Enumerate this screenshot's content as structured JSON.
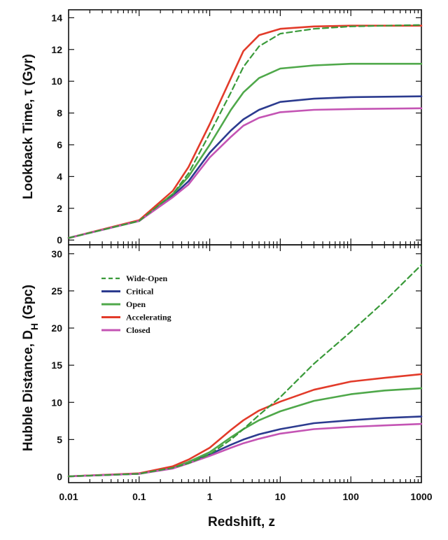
{
  "chart_data": [
    {
      "type": "line",
      "id": "top",
      "xscale": "log",
      "xlim": [
        0.01,
        1000
      ],
      "ylim": [
        -0.3,
        14.5
      ],
      "ylabel": "Lookback Time, τ (Gyr)",
      "yticks": [
        0,
        2,
        4,
        6,
        8,
        10,
        12,
        14
      ],
      "grid": false,
      "series": [
        {
          "name": "Wide-Open",
          "color": "#3a9a3a",
          "dashed": true,
          "points": [
            [
              0.01,
              0.13
            ],
            [
              0.1,
              1.2
            ],
            [
              0.3,
              2.9
            ],
            [
              0.5,
              4.2
            ],
            [
              1,
              6.7
            ],
            [
              2,
              9.3
            ],
            [
              3,
              10.9
            ],
            [
              5,
              12.2
            ],
            [
              10,
              13.0
            ],
            [
              30,
              13.3
            ],
            [
              100,
              13.45
            ],
            [
              1000,
              13.55
            ]
          ]
        },
        {
          "name": "Critical",
          "color": "#2c3b8f",
          "dashed": false,
          "points": [
            [
              0.01,
              0.13
            ],
            [
              0.1,
              1.2
            ],
            [
              0.3,
              2.8
            ],
            [
              0.5,
              3.7
            ],
            [
              1,
              5.5
            ],
            [
              2,
              6.9
            ],
            [
              3,
              7.6
            ],
            [
              5,
              8.2
            ],
            [
              10,
              8.7
            ],
            [
              30,
              8.9
            ],
            [
              100,
              9.0
            ],
            [
              1000,
              9.05
            ]
          ]
        },
        {
          "name": "Open",
          "color": "#4fa84a",
          "dashed": false,
          "points": [
            [
              0.01,
              0.13
            ],
            [
              0.1,
              1.2
            ],
            [
              0.3,
              2.9
            ],
            [
              0.5,
              4.0
            ],
            [
              1,
              6.0
            ],
            [
              2,
              8.2
            ],
            [
              3,
              9.3
            ],
            [
              5,
              10.2
            ],
            [
              10,
              10.8
            ],
            [
              30,
              11.0
            ],
            [
              100,
              11.1
            ],
            [
              1000,
              11.1
            ]
          ]
        },
        {
          "name": "Accelerating",
          "color": "#e23b2a",
          "dashed": false,
          "points": [
            [
              0.01,
              0.13
            ],
            [
              0.1,
              1.25
            ],
            [
              0.3,
              3.1
            ],
            [
              0.5,
              4.6
            ],
            [
              1,
              7.3
            ],
            [
              2,
              10.2
            ],
            [
              3,
              11.9
            ],
            [
              5,
              12.9
            ],
            [
              10,
              13.3
            ],
            [
              30,
              13.45
            ],
            [
              100,
              13.5
            ],
            [
              1000,
              13.5
            ]
          ]
        },
        {
          "name": "Closed",
          "color": "#c454b4",
          "dashed": false,
          "points": [
            [
              0.01,
              0.13
            ],
            [
              0.1,
              1.2
            ],
            [
              0.3,
              2.7
            ],
            [
              0.5,
              3.5
            ],
            [
              1,
              5.2
            ],
            [
              2,
              6.5
            ],
            [
              3,
              7.2
            ],
            [
              5,
              7.7
            ],
            [
              10,
              8.05
            ],
            [
              30,
              8.2
            ],
            [
              100,
              8.25
            ],
            [
              1000,
              8.3
            ]
          ]
        }
      ]
    },
    {
      "type": "line",
      "id": "bottom",
      "xscale": "log",
      "xlim": [
        0.01,
        1000
      ],
      "ylim": [
        -0.8,
        31.2
      ],
      "xlabel": "Redshift, z",
      "ylabel": "Hubble Distance, D_H (Gpc)",
      "yticks": [
        0,
        5,
        10,
        15,
        20,
        25,
        30
      ],
      "xticks": [
        0.01,
        0.1,
        1,
        10,
        100,
        1000
      ],
      "xtick_labels": [
        "0.01",
        "0.1",
        "1",
        "10",
        "100",
        "1000"
      ],
      "grid": false,
      "legend_position": "top-left",
      "series": [
        {
          "name": "Wide-Open",
          "color": "#3a9a3a",
          "dashed": true,
          "points": [
            [
              0.01,
              0.05
            ],
            [
              0.1,
              0.4
            ],
            [
              0.3,
              1.2
            ],
            [
              0.5,
              1.8
            ],
            [
              1,
              3.0
            ],
            [
              2,
              5.0
            ],
            [
              3,
              6.4
            ],
            [
              5,
              8.3
            ],
            [
              10,
              10.7
            ],
            [
              30,
              15.2
            ],
            [
              100,
              19.5
            ],
            [
              300,
              23.6
            ],
            [
              1000,
              28.5
            ]
          ]
        },
        {
          "name": "Critical",
          "color": "#2c3b8f",
          "dashed": false,
          "points": [
            [
              0.01,
              0.05
            ],
            [
              0.1,
              0.4
            ],
            [
              0.3,
              1.2
            ],
            [
              0.5,
              1.9
            ],
            [
              1,
              3.0
            ],
            [
              2,
              4.3
            ],
            [
              3,
              5.0
            ],
            [
              5,
              5.7
            ],
            [
              10,
              6.4
            ],
            [
              30,
              7.2
            ],
            [
              100,
              7.6
            ],
            [
              300,
              7.9
            ],
            [
              1000,
              8.1
            ]
          ]
        },
        {
          "name": "Open",
          "color": "#4fa84a",
          "dashed": false,
          "points": [
            [
              0.01,
              0.05
            ],
            [
              0.1,
              0.4
            ],
            [
              0.3,
              1.2
            ],
            [
              0.5,
              2.0
            ],
            [
              1,
              3.3
            ],
            [
              2,
              5.3
            ],
            [
              3,
              6.4
            ],
            [
              5,
              7.6
            ],
            [
              10,
              8.8
            ],
            [
              30,
              10.2
            ],
            [
              100,
              11.1
            ],
            [
              300,
              11.6
            ],
            [
              1000,
              11.9
            ]
          ]
        },
        {
          "name": "Accelerating",
          "color": "#e23b2a",
          "dashed": false,
          "points": [
            [
              0.01,
              0.05
            ],
            [
              0.1,
              0.45
            ],
            [
              0.3,
              1.4
            ],
            [
              0.5,
              2.3
            ],
            [
              1,
              3.9
            ],
            [
              2,
              6.3
            ],
            [
              3,
              7.6
            ],
            [
              5,
              8.9
            ],
            [
              10,
              10.1
            ],
            [
              30,
              11.7
            ],
            [
              100,
              12.8
            ],
            [
              300,
              13.3
            ],
            [
              1000,
              13.8
            ]
          ]
        },
        {
          "name": "Closed",
          "color": "#c454b4",
          "dashed": false,
          "points": [
            [
              0.01,
              0.05
            ],
            [
              0.1,
              0.4
            ],
            [
              0.3,
              1.1
            ],
            [
              0.5,
              1.8
            ],
            [
              1,
              2.8
            ],
            [
              2,
              3.9
            ],
            [
              3,
              4.5
            ],
            [
              5,
              5.1
            ],
            [
              10,
              5.8
            ],
            [
              30,
              6.4
            ],
            [
              100,
              6.7
            ],
            [
              300,
              6.9
            ],
            [
              1000,
              7.1
            ]
          ]
        }
      ]
    }
  ]
}
